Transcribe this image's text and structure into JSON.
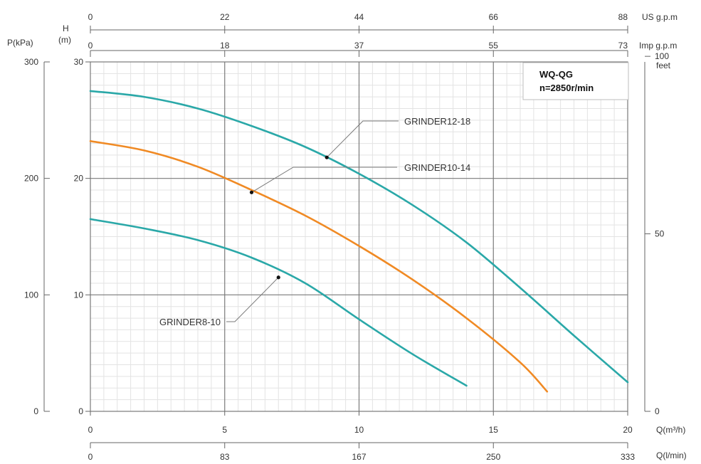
{
  "chart_data": {
    "type": "line",
    "title": "WQ-QG",
    "subtitle": "n=2850r/min",
    "grid": true,
    "axes": {
      "x_bottom_primary": {
        "label": "Q(m³/h)",
        "ticks": [
          "0",
          "5",
          "10",
          "15",
          "20"
        ],
        "range": [
          0,
          20
        ]
      },
      "x_bottom_secondary": {
        "label": "Q(l/min)",
        "ticks": [
          "0",
          "83",
          "167",
          "250",
          "333"
        ]
      },
      "x_top_usgpm": {
        "unit": "US g.p.m",
        "ticks": [
          "0",
          "22",
          "44",
          "66",
          "88"
        ]
      },
      "x_top_impgpm": {
        "unit": "Imp g.p.m",
        "ticks": [
          "0",
          "18",
          "37",
          "55",
          "73"
        ]
      },
      "y_left_head": {
        "label_top": "H",
        "label_bottom": "(m)",
        "ticks": [
          "0",
          "10",
          "20",
          "30"
        ],
        "range": [
          0,
          30
        ]
      },
      "y_left_pressure": {
        "label": "P(kPa)",
        "ticks": [
          "0",
          "100",
          "200",
          "300"
        ]
      },
      "y_right_feet": {
        "label": "feet",
        "ticks": [
          "0",
          "50",
          "100"
        ]
      }
    },
    "series": [
      {
        "name": "GRINDER12-18",
        "color": "#2aa8a8",
        "x": [
          0,
          2,
          4,
          6,
          8,
          10,
          12,
          14,
          16,
          18,
          20
        ],
        "y": [
          27.5,
          27.0,
          26.0,
          24.5,
          22.7,
          20.4,
          17.7,
          14.5,
          10.6,
          6.5,
          2.5
        ]
      },
      {
        "name": "GRINDER10-14",
        "color": "#f08a24",
        "x": [
          0,
          2,
          4,
          6,
          8,
          10,
          12,
          14,
          16,
          17
        ],
        "y": [
          23.2,
          22.4,
          21.0,
          19.0,
          16.8,
          14.2,
          11.3,
          8.0,
          4.2,
          1.7
        ]
      },
      {
        "name": "GRINDER8-10",
        "color": "#2aa8a8",
        "x": [
          0,
          2,
          4,
          6,
          8,
          10,
          12,
          14
        ],
        "y": [
          16.5,
          15.7,
          14.7,
          13.2,
          11.0,
          7.9,
          4.9,
          2.2
        ]
      }
    ],
    "callouts": [
      {
        "series": "GRINDER12-18",
        "point": [
          8.8,
          21.8
        ]
      },
      {
        "series": "GRINDER10-14",
        "point": [
          6.0,
          18.8
        ]
      },
      {
        "series": "GRINDER8-10",
        "point": [
          7.0,
          11.5
        ]
      }
    ]
  }
}
